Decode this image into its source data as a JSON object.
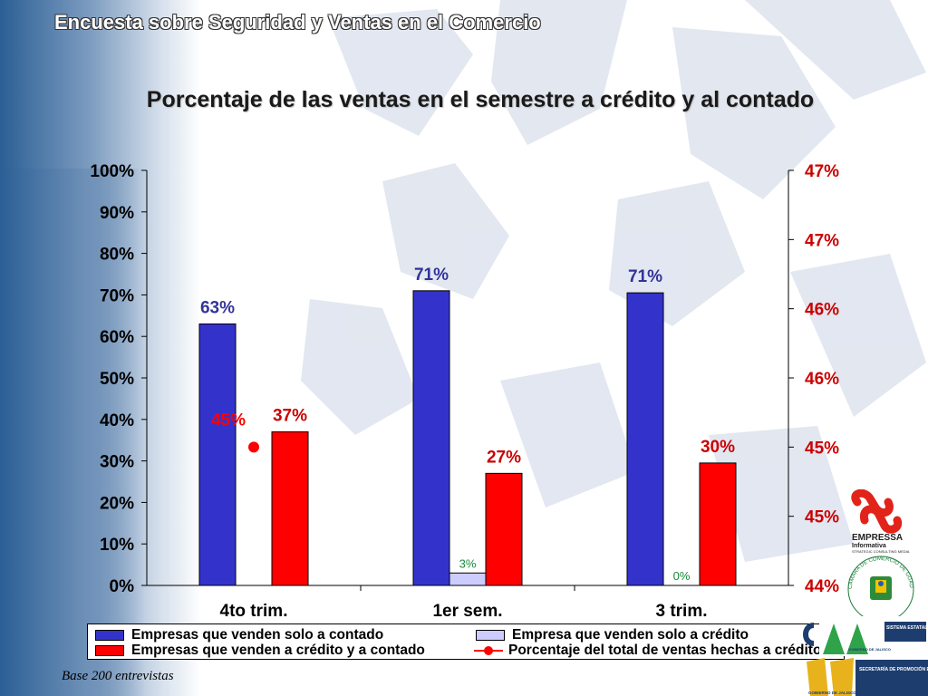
{
  "header": {
    "title": "Encuesta sobre Seguridad y Ventas en el Comercio"
  },
  "chart_data": {
    "type": "bar",
    "title": "Porcentaje de las ventas en el semestre a crédito y al contado",
    "categories": [
      "4to trim.",
      "1er sem.",
      "3 trim."
    ],
    "ylim": [
      0,
      100
    ],
    "y_ticks": [
      "0%",
      "10%",
      "20%",
      "30%",
      "40%",
      "50%",
      "60%",
      "70%",
      "80%",
      "90%",
      "100%"
    ],
    "y2_ticks": [
      "44%",
      "45%",
      "45%",
      "46%",
      "46%",
      "47%",
      "47%"
    ],
    "y2lim": [
      44,
      47
    ],
    "series": [
      {
        "name": "Empresas que venden solo a contado",
        "values": [
          63,
          71,
          70.5
        ],
        "labels": [
          "63%",
          "71%",
          "71%"
        ],
        "color": "#3333cc"
      },
      {
        "name": "Empresa que venden solo a crédito",
        "values": [
          0,
          3,
          0
        ],
        "labels": [
          "",
          "3%",
          "0%"
        ],
        "color": "#ccccff"
      },
      {
        "name": "Empresas que venden a crédito y a contado",
        "values": [
          37,
          27,
          29.5
        ],
        "labels": [
          "37%",
          "27%",
          "30%"
        ],
        "color": "#ff0000"
      },
      {
        "name": "Porcentaje del total de ventas hechas a crédito",
        "type": "line",
        "axis": "secondary",
        "values": [
          45,
          null,
          null
        ],
        "labels": [
          "45%",
          "",
          ""
        ],
        "color": "#ff0000"
      }
    ],
    "grid": false,
    "legend": "bottom"
  },
  "footnote": "Base 200 entrevistas",
  "logos": {
    "empressa_name": "EMPRESSA",
    "empressa_sub": "Informativa",
    "empressa_tag": "STRATEGIC CONSULTING MEDIA",
    "camara_text": "CAMARA DE COMERCIO DE GUADALAJARA",
    "jalisco_info": "SISTEMA ESTATAL DE INFORMACIÓN",
    "gobierno_1": "GOBIERNO DE JALISCO",
    "secretaria": "SECRETARÍA DE PROMOCIÓN ECONÓMICA",
    "gobierno_2": "GOBIERNO DE JALISCO"
  },
  "colors": {
    "primary_bar": "#3333cc",
    "credit_bar": "#ccccff",
    "mixed_bar": "#ff0000",
    "secondary_axis": "#cc0000"
  }
}
